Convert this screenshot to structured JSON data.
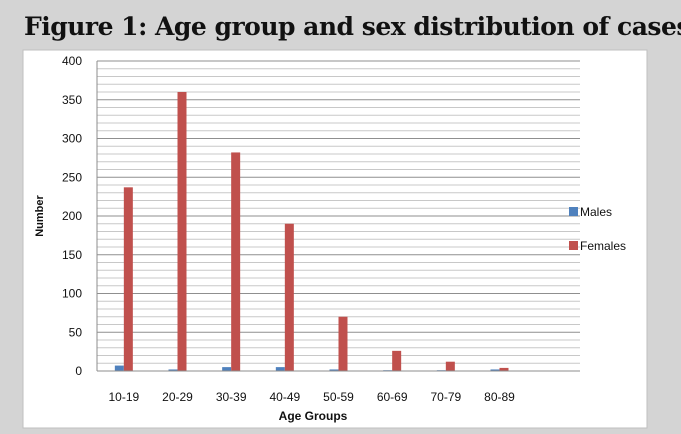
{
  "figure": {
    "title": "Figure 1: Age group and sex distribution of cases."
  },
  "chart_data": {
    "type": "bar",
    "title": "",
    "xlabel": "Age Groups",
    "ylabel": "Number",
    "ylim": [
      0,
      400
    ],
    "yticks": [
      0,
      50,
      100,
      150,
      200,
      250,
      300,
      350,
      400
    ],
    "grid": true,
    "legend_position": "right",
    "categories": [
      "10-19",
      "20-29",
      "30-39",
      "40-49",
      "50-59",
      "60-69",
      "70-79",
      "80-89"
    ],
    "series": [
      {
        "name": "Males",
        "color": "#4f81bd",
        "values": [
          7,
          2,
          5,
          5,
          2,
          1,
          1,
          2
        ]
      },
      {
        "name": "Females",
        "color": "#c0504d",
        "values": [
          237,
          360,
          282,
          190,
          70,
          26,
          12,
          4
        ]
      }
    ]
  }
}
